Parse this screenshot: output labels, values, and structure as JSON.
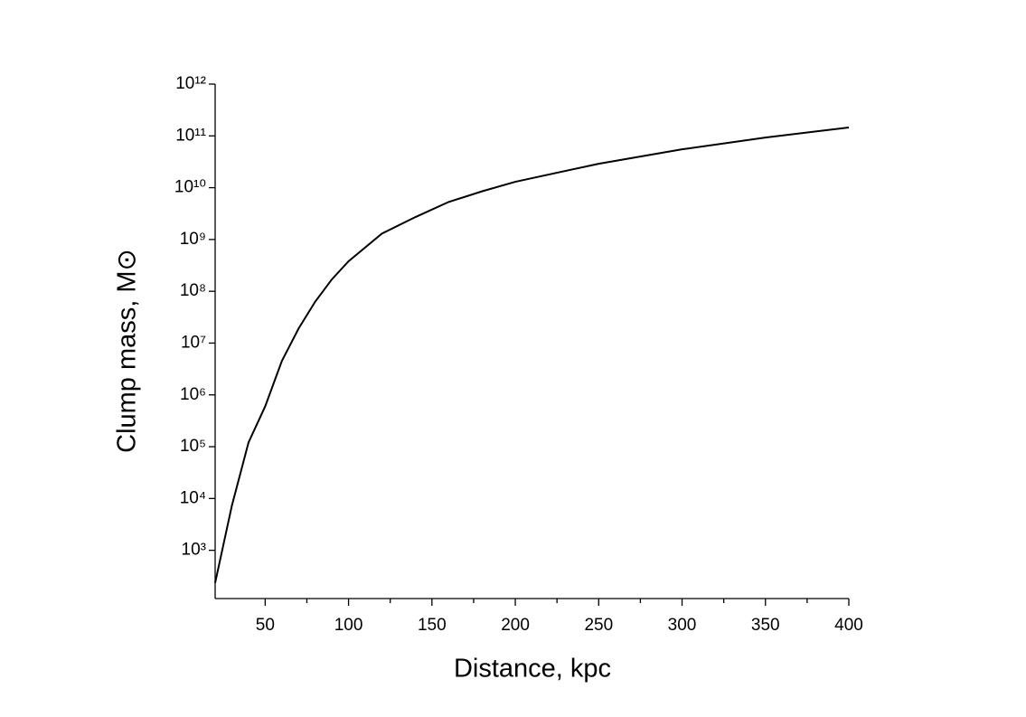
{
  "chart_data": {
    "type": "line",
    "x_label": "Distance, kpc",
    "y_label": "Clump mass, M⊙",
    "x": [
      20,
      30,
      40,
      50,
      60,
      70,
      80,
      90,
      100,
      120,
      140,
      160,
      180,
      200,
      250,
      300,
      350,
      400
    ],
    "series": [
      {
        "color": "#000000",
        "values": [
          235,
          7200,
          120000,
          600000,
          4500000,
          19000000,
          63000000,
          170000000,
          380000000,
          1300000000,
          2700000000,
          5300000000,
          8500000000,
          13000000000,
          29000000000,
          55000000000,
          93000000000,
          145000000000
        ]
      }
    ],
    "xlim": [
      20,
      400
    ],
    "xticks": [
      50,
      100,
      150,
      200,
      250,
      300,
      350,
      400
    ],
    "ylim": [
      117,
      1000000000000
    ],
    "y_log": true,
    "yticks": [
      {
        "value": 1000,
        "label": "10³"
      },
      {
        "value": 10000,
        "label": "10⁴"
      },
      {
        "value": 100000,
        "label": "10⁵"
      },
      {
        "value": 1000000,
        "label": "10⁶"
      },
      {
        "value": 10000000,
        "label": "10⁷"
      },
      {
        "value": 100000000,
        "label": "10⁸"
      },
      {
        "value": 1000000000,
        "label": "10⁹"
      },
      {
        "value": 10000000000,
        "label": "10¹⁰"
      },
      {
        "value": 100000000000,
        "label": "10¹¹"
      },
      {
        "value": 1000000000000,
        "label": "10¹²"
      }
    ],
    "grid": false
  }
}
